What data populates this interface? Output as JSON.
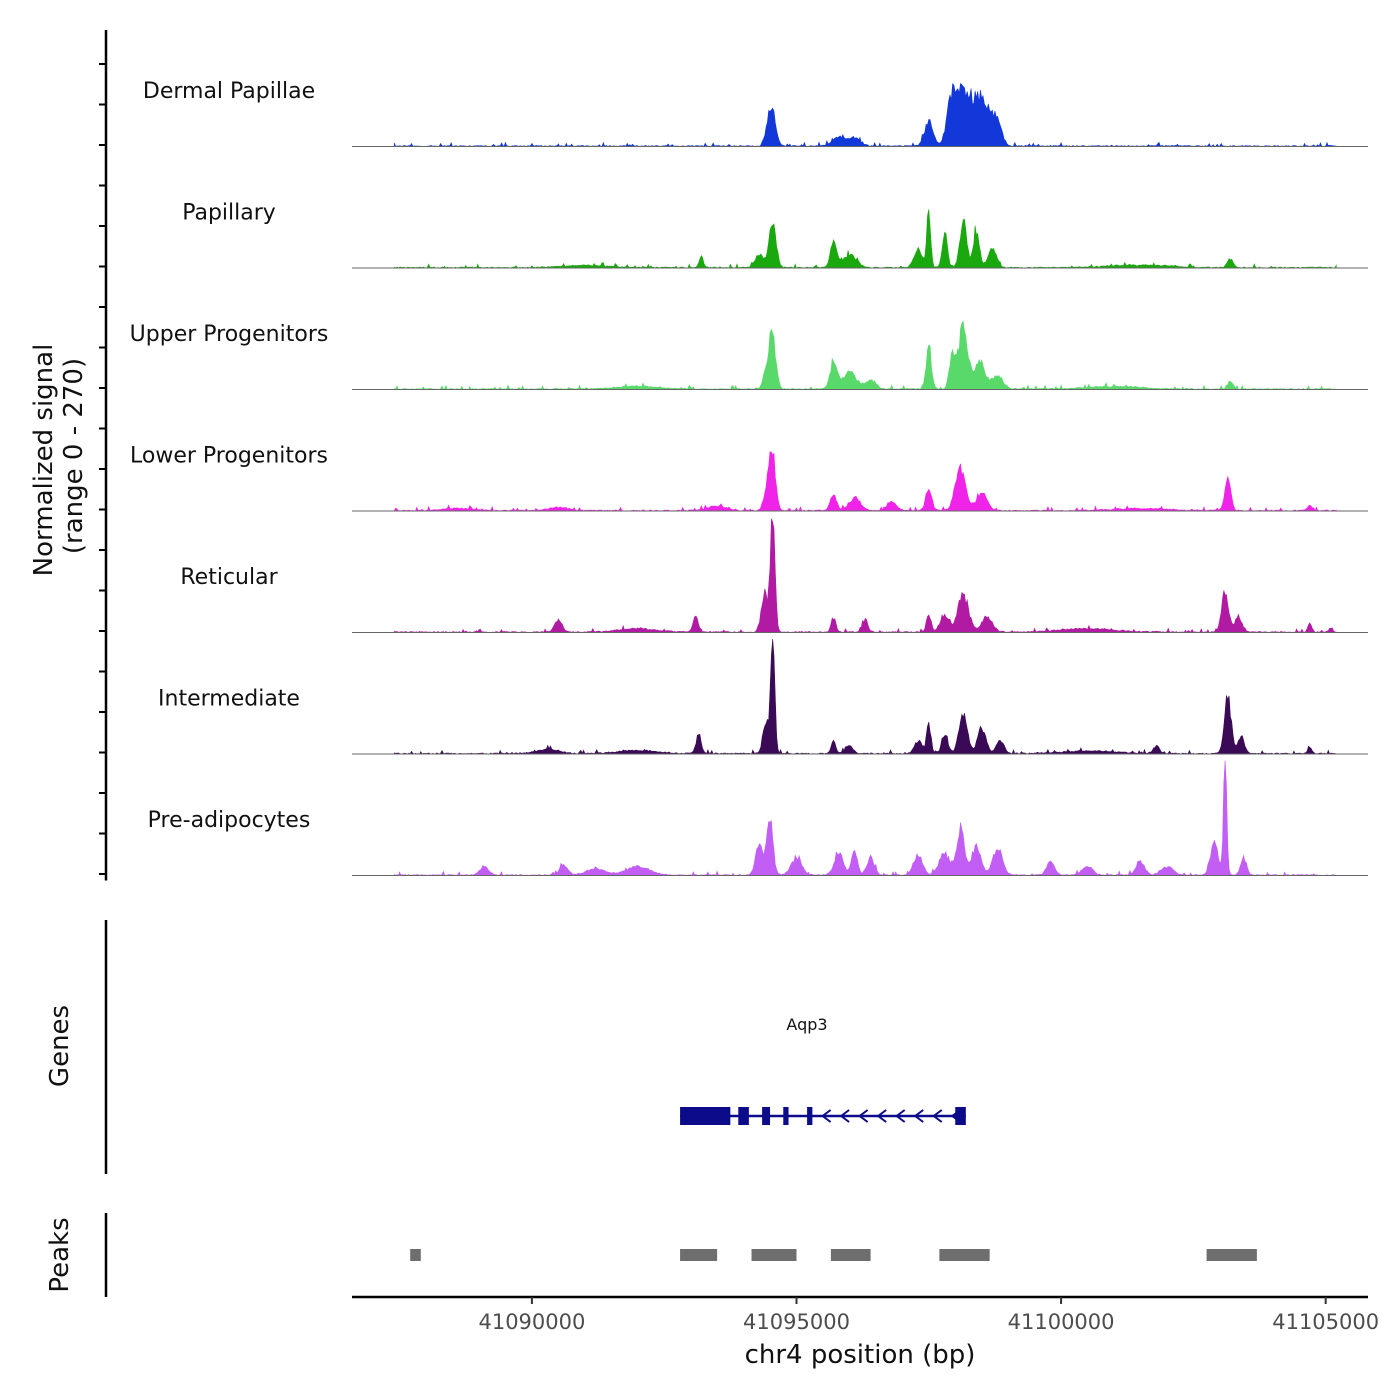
{
  "chart_data": {
    "type": "area",
    "title": "",
    "xlabel": "chr4 position (bp)",
    "ylabel_line1": "Normalized signal",
    "ylabel_line2": "(range 0 - 270)",
    "ylim": [
      0,
      270
    ],
    "xlim": [
      41086600,
      41105800
    ],
    "x_ticks": [
      41090000,
      41095000,
      41100000,
      41105000
    ],
    "x_tick_labels": [
      "41090000",
      "41095000",
      "41100000",
      "41105000"
    ],
    "genes_label": "Genes",
    "peaks_label": "Peaks",
    "tracks": [
      {
        "name": "Dermal Papillae",
        "color": "#1238d9",
        "peaks": [
          [
            41094550,
            80,
            90
          ],
          [
            41094450,
            40,
            70
          ],
          [
            41095800,
            20,
            180
          ],
          [
            41096100,
            18,
            150
          ],
          [
            41097500,
            60,
            110
          ],
          [
            41097900,
            45,
            90
          ],
          [
            41098200,
            110,
            260
          ],
          [
            41098550,
            95,
            200
          ],
          [
            41098000,
            60,
            160
          ],
          [
            41098800,
            45,
            120
          ]
        ]
      },
      {
        "name": "Papillary",
        "color": "#1aa80f",
        "peaks": [
          [
            41094550,
            110,
            90
          ],
          [
            41094300,
            30,
            120
          ],
          [
            41093200,
            25,
            50
          ],
          [
            41095700,
            60,
            80
          ],
          [
            41096000,
            30,
            180
          ],
          [
            41097300,
            40,
            110
          ],
          [
            41097500,
            130,
            50
          ],
          [
            41097800,
            80,
            70
          ],
          [
            41098150,
            110,
            90
          ],
          [
            41098400,
            90,
            80
          ],
          [
            41098700,
            45,
            110
          ],
          [
            41103200,
            20,
            80
          ],
          [
            41091000,
            5,
            600
          ],
          [
            41101500,
            6,
            800
          ]
        ]
      },
      {
        "name": "Upper Progenitors",
        "color": "#5ad96b",
        "peaks": [
          [
            41094550,
            110,
            90
          ],
          [
            41094450,
            45,
            100
          ],
          [
            41095700,
            65,
            90
          ],
          [
            41096000,
            40,
            180
          ],
          [
            41096400,
            20,
            140
          ],
          [
            41097500,
            100,
            70
          ],
          [
            41098150,
            150,
            110
          ],
          [
            41097950,
            80,
            80
          ],
          [
            41098450,
            65,
            150
          ],
          [
            41098800,
            30,
            150
          ],
          [
            41103200,
            18,
            70
          ],
          [
            41092000,
            6,
            600
          ],
          [
            41101000,
            6,
            700
          ]
        ]
      },
      {
        "name": "Lower Progenitors",
        "color": "#f023e8",
        "peaks": [
          [
            41094550,
            130,
            80
          ],
          [
            41094450,
            50,
            90
          ],
          [
            41095700,
            40,
            80
          ],
          [
            41096100,
            30,
            150
          ],
          [
            41096800,
            20,
            120
          ],
          [
            41097500,
            50,
            80
          ],
          [
            41098100,
            95,
            140
          ],
          [
            41098500,
            40,
            140
          ],
          [
            41103150,
            70,
            80
          ],
          [
            41093500,
            10,
            250
          ],
          [
            41090500,
            8,
            250
          ],
          [
            41104700,
            12,
            60
          ],
          [
            41088600,
            5,
            400
          ],
          [
            41101500,
            5,
            700
          ]
        ]
      },
      {
        "name": "Reticular",
        "color": "#b11aa3",
        "peaks": [
          [
            41094550,
            270,
            60
          ],
          [
            41094400,
            90,
            90
          ],
          [
            41093100,
            35,
            70
          ],
          [
            41090500,
            28,
            100
          ],
          [
            41095700,
            35,
            60
          ],
          [
            41096300,
            30,
            70
          ],
          [
            41097500,
            40,
            60
          ],
          [
            41098150,
            90,
            140
          ],
          [
            41097800,
            40,
            120
          ],
          [
            41098600,
            35,
            140
          ],
          [
            41103100,
            100,
            90
          ],
          [
            41103350,
            35,
            90
          ],
          [
            41104700,
            25,
            50
          ],
          [
            41105100,
            10,
            50
          ],
          [
            41092000,
            8,
            500
          ],
          [
            41100500,
            8,
            700
          ]
        ]
      },
      {
        "name": "Intermediate",
        "color": "#3b0a57",
        "peaks": [
          [
            41094550,
            270,
            55
          ],
          [
            41094420,
            70,
            80
          ],
          [
            41093150,
            45,
            70
          ],
          [
            41095700,
            30,
            60
          ],
          [
            41096000,
            18,
            100
          ],
          [
            41097300,
            30,
            100
          ],
          [
            41097500,
            65,
            60
          ],
          [
            41097800,
            45,
            80
          ],
          [
            41098150,
            95,
            110
          ],
          [
            41098500,
            60,
            110
          ],
          [
            41098850,
            30,
            100
          ],
          [
            41101800,
            18,
            80
          ],
          [
            41103150,
            135,
            90
          ],
          [
            41103400,
            40,
            90
          ],
          [
            41104700,
            15,
            50
          ],
          [
            41090300,
            10,
            300
          ],
          [
            41092000,
            8,
            500
          ],
          [
            41100500,
            6,
            700
          ]
        ]
      },
      {
        "name": "Pre-adipocytes",
        "color": "#c35ef5",
        "peaks": [
          [
            41094500,
            140,
            80
          ],
          [
            41094300,
            70,
            100
          ],
          [
            41095000,
            40,
            140
          ],
          [
            41095800,
            50,
            120
          ],
          [
            41096100,
            55,
            80
          ],
          [
            41096400,
            40,
            100
          ],
          [
            41097300,
            45,
            120
          ],
          [
            41097800,
            50,
            150
          ],
          [
            41098100,
            110,
            100
          ],
          [
            41098400,
            70,
            120
          ],
          [
            41098800,
            60,
            130
          ],
          [
            41099800,
            30,
            100
          ],
          [
            41100500,
            20,
            140
          ],
          [
            41101500,
            30,
            120
          ],
          [
            41102000,
            20,
            160
          ],
          [
            41103100,
            270,
            45
          ],
          [
            41102900,
            80,
            100
          ],
          [
            41103450,
            40,
            80
          ],
          [
            41090600,
            25,
            100
          ],
          [
            41089100,
            20,
            120
          ],
          [
            41092000,
            20,
            300
          ],
          [
            41091200,
            15,
            250
          ]
        ]
      }
    ],
    "gene": {
      "name": "Aqp3",
      "strand": "-",
      "color": "#0c0c8a",
      "start": 41092800,
      "end": 41098200,
      "exons": [
        [
          41092800,
          41093750
        ],
        [
          41093900,
          41094100
        ],
        [
          41094350,
          41094500
        ],
        [
          41094750,
          41094850
        ],
        [
          41095200,
          41095300
        ],
        [
          41098000,
          41098200
        ]
      ]
    },
    "peak_regions": [
      [
        41087700,
        41087900
      ],
      [
        41092800,
        41093500
      ],
      [
        41094150,
        41095000
      ],
      [
        41095650,
        41096400
      ],
      [
        41097700,
        41098650
      ],
      [
        41102750,
        41103700
      ]
    ]
  }
}
